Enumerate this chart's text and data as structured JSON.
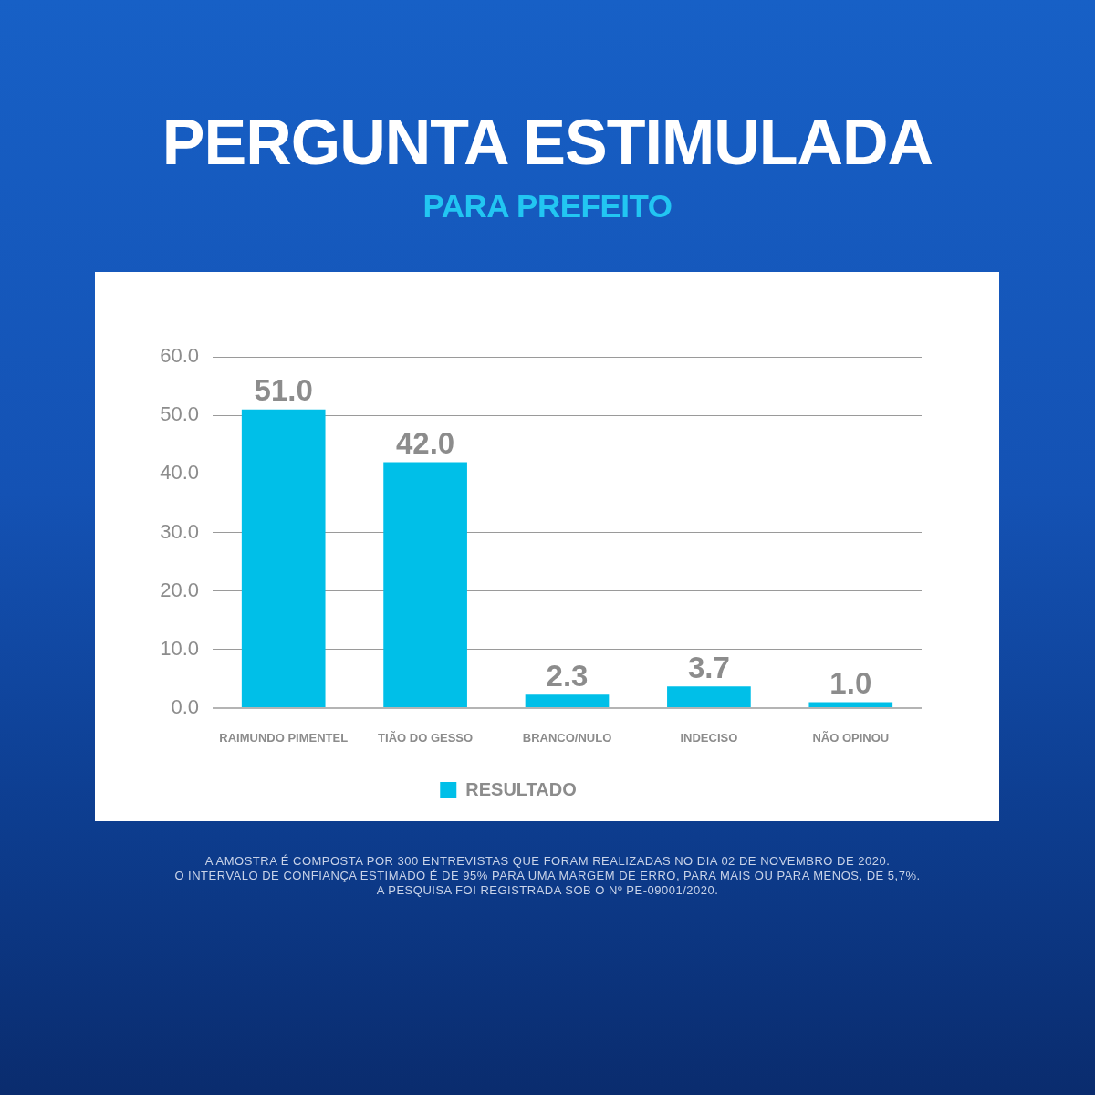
{
  "chart_data": {
    "type": "bar",
    "title": "PERGUNTA ESTIMULADA",
    "subtitle": "PARA PREFEITO",
    "categories": [
      "RAIMUNDO PIMENTEL",
      "TIÃO DO GESSO",
      "BRANCO/NULO",
      "INDECISO",
      "NÃO OPINOU"
    ],
    "series": [
      {
        "name": "RESULTADO",
        "color": "#00bfe8",
        "values": [
          51.0,
          42.0,
          2.3,
          3.7,
          1.0
        ],
        "value_labels": [
          "51.0",
          "42.0",
          "2.3",
          "3.7",
          "1.0"
        ]
      }
    ],
    "ylim": [
      0,
      60
    ],
    "yticks": [
      {
        "value": 0,
        "label": "0.0"
      },
      {
        "value": 10,
        "label": "10.0"
      },
      {
        "value": 20,
        "label": "20.0"
      },
      {
        "value": 30,
        "label": "30.0"
      },
      {
        "value": 40,
        "label": "40.0"
      },
      {
        "value": 50,
        "label": "50.0"
      },
      {
        "value": 60,
        "label": "60.0"
      }
    ],
    "grid": "y",
    "legend": "bottom",
    "annotations": [
      "A AMOSTRA É COMPOSTA POR 300 ENTREVISTAS QUE FORAM REALIZADAS NO DIA 02 DE NOVEMBRO DE 2020.",
      "O INTERVALO DE CONFIANÇA ESTIMADO É DE 95% PARA UMA MARGEM DE ERRO, PARA MAIS OU PARA MENOS, DE 5,7%.",
      "A PESQUISA FOI REGISTRADA SOB O Nº PE-09001/2020."
    ]
  }
}
